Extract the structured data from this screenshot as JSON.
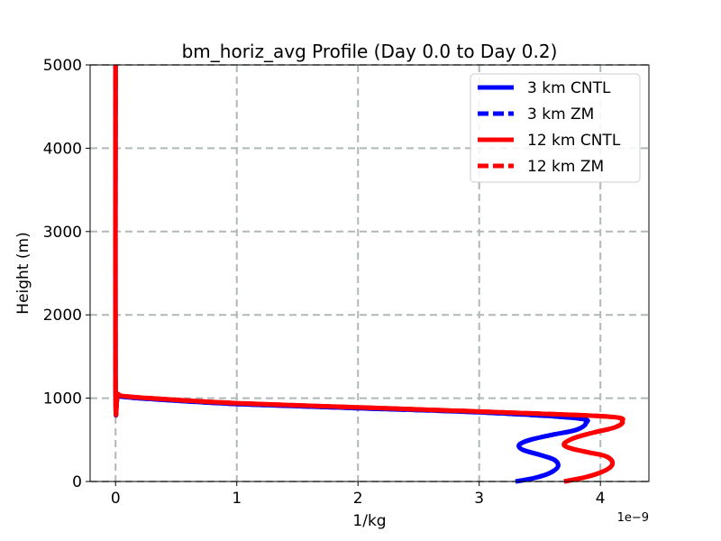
{
  "chart_data": {
    "type": "line",
    "title": "bm_horiz_avg Profile (Day 0.0 to Day 0.2)",
    "xlabel": "1/kg",
    "ylabel": "Height (m)",
    "x_offset_label": "1e−9",
    "x_scale": 1e-09,
    "xlim": [
      -0.21,
      4.4
    ],
    "ylim": [
      0,
      5000
    ],
    "xticks": [
      0,
      1,
      2,
      3,
      4
    ],
    "xtick_labels": [
      "0",
      "1",
      "2",
      "3",
      "4"
    ],
    "yticks": [
      0,
      1000,
      2000,
      3000,
      4000,
      5000
    ],
    "ytick_labels": [
      "0",
      "1000",
      "2000",
      "3000",
      "4000",
      "5000"
    ],
    "grid": true,
    "legend_position": "top-right",
    "series": [
      {
        "name": "3 km CNTL",
        "color": "#0000ff",
        "style": "solid",
        "x": [
          3.3,
          3.45,
          3.58,
          3.65,
          3.62,
          3.5,
          3.36,
          3.33,
          3.42,
          3.6,
          3.8,
          3.88,
          3.8,
          3.0,
          2.0,
          1.0,
          0.5,
          0.1,
          0.02,
          0.0,
          0.0
        ],
        "y": [
          0,
          40,
          100,
          180,
          260,
          320,
          380,
          440,
          500,
          560,
          620,
          700,
          760,
          830,
          880,
          930,
          970,
          1010,
          1040,
          1100,
          5000
        ]
      },
      {
        "name": "3 km ZM",
        "color": "#0000ff",
        "style": "dashed",
        "x": [
          3.3,
          3.45,
          3.58,
          3.65,
          3.62,
          3.5,
          3.36,
          3.33,
          3.42,
          3.6,
          3.8,
          3.88,
          3.8,
          3.0,
          2.0,
          1.0,
          0.5,
          0.1,
          0.02,
          0.0,
          0.0
        ],
        "y": [
          0,
          40,
          100,
          180,
          260,
          320,
          380,
          440,
          500,
          560,
          620,
          700,
          760,
          830,
          880,
          930,
          970,
          1010,
          1040,
          1100,
          5000
        ]
      },
      {
        "name": "12 km CNTL",
        "color": "#ff0000",
        "style": "solid",
        "x": [
          3.7,
          3.9,
          4.05,
          4.1,
          4.05,
          3.9,
          3.75,
          3.7,
          3.78,
          3.95,
          4.12,
          4.18,
          4.05,
          3.0,
          2.0,
          1.0,
          0.5,
          0.1,
          0.02,
          0.0,
          0.0
        ],
        "y": [
          0,
          60,
          140,
          220,
          300,
          350,
          400,
          450,
          520,
          590,
          650,
          720,
          780,
          840,
          890,
          940,
          980,
          1020,
          1050,
          1100,
          5000
        ]
      },
      {
        "name": "12 km ZM",
        "color": "#ff0000",
        "style": "dashed",
        "x": [
          3.7,
          3.9,
          4.05,
          4.1,
          4.05,
          3.9,
          3.75,
          3.7,
          3.78,
          3.95,
          4.12,
          4.18,
          4.05,
          3.0,
          2.0,
          1.0,
          0.5,
          0.1,
          0.02,
          0.0,
          0.0
        ],
        "y": [
          0,
          60,
          140,
          220,
          300,
          350,
          400,
          450,
          520,
          590,
          650,
          720,
          780,
          840,
          890,
          940,
          980,
          1020,
          1050,
          1100,
          5000
        ]
      }
    ]
  }
}
